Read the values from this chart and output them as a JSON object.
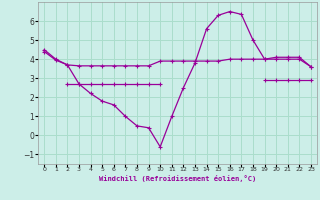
{
  "xlabel": "Windchill (Refroidissement éolien,°C)",
  "background_color": "#cceee8",
  "grid_color": "#aaddcc",
  "line_color": "#990099",
  "x_values": [
    0,
    1,
    2,
    3,
    4,
    5,
    6,
    7,
    8,
    9,
    10,
    11,
    12,
    13,
    14,
    15,
    16,
    17,
    18,
    19,
    20,
    21,
    22,
    23
  ],
  "curve1": [
    4.5,
    4.0,
    3.7,
    2.7,
    2.2,
    1.8,
    1.6,
    1.0,
    0.5,
    0.4,
    -0.6,
    1.0,
    2.5,
    3.8,
    5.6,
    6.3,
    6.5,
    6.35,
    5.0,
    4.0,
    4.1,
    4.1,
    4.1,
    3.6
  ],
  "curve2": [
    4.4,
    3.95,
    3.7,
    3.65,
    3.65,
    3.65,
    3.65,
    3.65,
    3.65,
    3.65,
    3.9,
    3.9,
    3.9,
    3.9,
    3.9,
    3.9,
    4.0,
    4.0,
    4.0,
    4.0,
    4.0,
    4.0,
    4.0,
    3.6
  ],
  "curve3": [
    null,
    null,
    2.7,
    2.7,
    2.7,
    2.7,
    2.7,
    2.7,
    2.7,
    2.7,
    2.7,
    null,
    null,
    null,
    null,
    null,
    null,
    null,
    null,
    2.9,
    2.9,
    2.9,
    2.9,
    2.9
  ],
  "ylim": [
    -1.5,
    7.0
  ],
  "xlim": [
    -0.5,
    23.5
  ],
  "yticks": [
    -1,
    0,
    1,
    2,
    3,
    4,
    5,
    6
  ],
  "xticks": [
    0,
    1,
    2,
    3,
    4,
    5,
    6,
    7,
    8,
    9,
    10,
    11,
    12,
    13,
    14,
    15,
    16,
    17,
    18,
    19,
    20,
    21,
    22,
    23
  ]
}
